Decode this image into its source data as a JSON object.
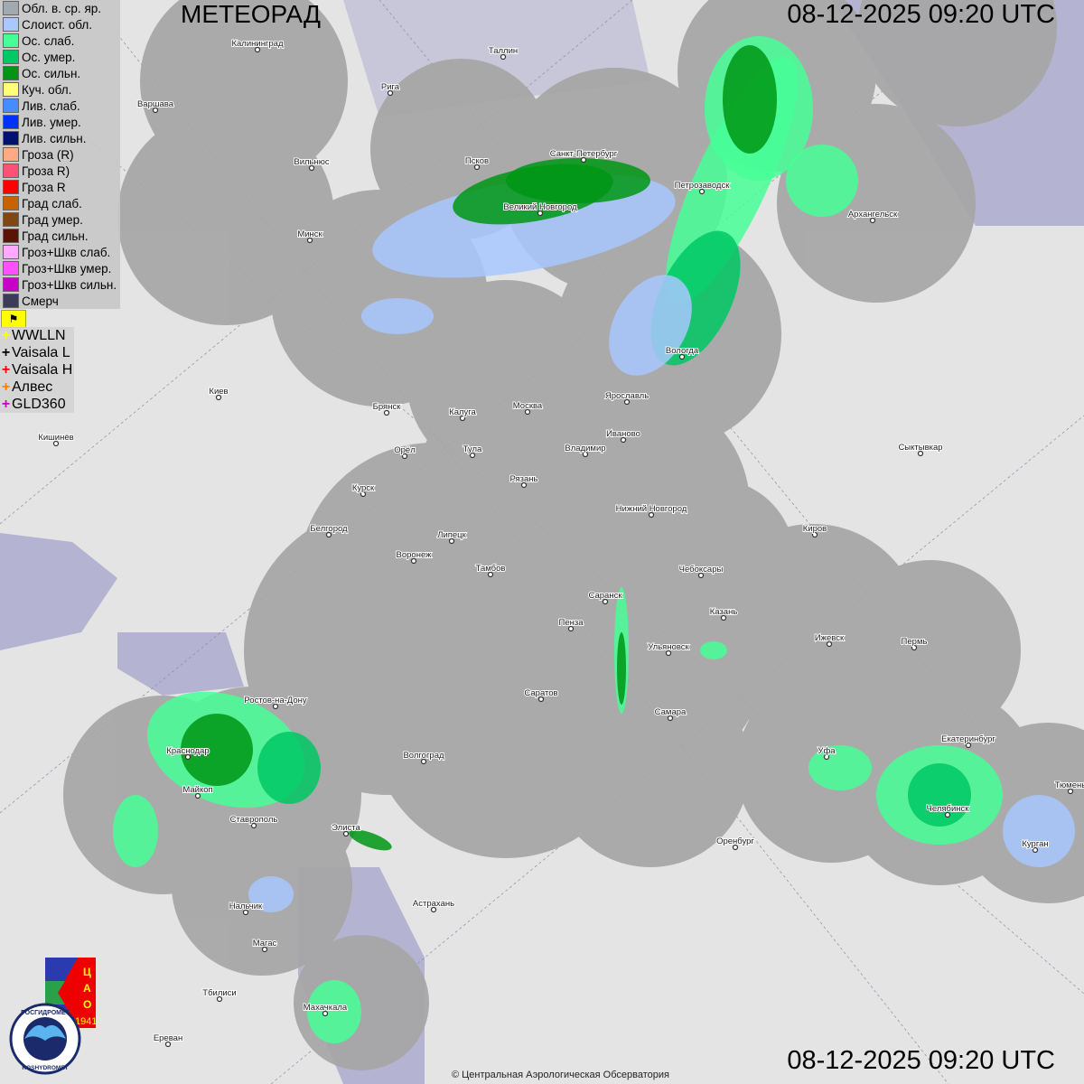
{
  "title": "МЕТЕОРАД",
  "timestamp_top": "08-12-2025  09:20 UTC",
  "timestamp_bottom": "08-12-2025  09:20 UTC",
  "copyright": "© Центральная Аэрологическая Обсерватория",
  "legend": [
    {
      "label": "Обл. в. ср. яр.",
      "color": "#a0aab0"
    },
    {
      "label": "Слоист. обл.",
      "color": "#a8c8ff"
    },
    {
      "label": "Ос. слаб.",
      "color": "#46ff96"
    },
    {
      "label": "Ос. умер.",
      "color": "#00c864"
    },
    {
      "label": "Ос. сильн.",
      "color": "#009614"
    },
    {
      "label": "Куч. обл.",
      "color": "#ffff78"
    },
    {
      "label": "Лив. слаб.",
      "color": "#468cff"
    },
    {
      "label": "Лив. умер.",
      "color": "#0032ff"
    },
    {
      "label": "Лив. сильн.",
      "color": "#00126e"
    },
    {
      "label": "Гроза (R)",
      "color": "#ffaa82"
    },
    {
      "label": "Гроза R)",
      "color": "#ff5078"
    },
    {
      "label": "Гроза R",
      "color": "#ff0000"
    },
    {
      "label": "Град слаб.",
      "color": "#c86400"
    },
    {
      "label": "Град умер.",
      "color": "#824614"
    },
    {
      "label": "Град сильн.",
      "color": "#5a1405"
    },
    {
      "label": "Гроз+Шкв слаб.",
      "color": "#ffaaff"
    },
    {
      "label": "Гроз+Шкв умер.",
      "color": "#ff50ff"
    },
    {
      "label": "Гроз+Шкв сильн.",
      "color": "#c800c8"
    },
    {
      "label": "Смерч",
      "color": "#3c3c5a"
    }
  ],
  "lightning": [
    {
      "label": "WWLLN",
      "color": "#ffff00"
    },
    {
      "label": "Vaisala L",
      "color": "#000000"
    },
    {
      "label": "Vaisala H",
      "color": "#ff0000"
    },
    {
      "label": "Алвес",
      "color": "#ff8000"
    },
    {
      "label": "GLD360",
      "color": "#c800c8"
    }
  ],
  "flag_icon": "flag-icon",
  "logos": {
    "cao": "ЦАО 1941",
    "roshydromet": "РОСГИДРОМЕТ ROSHYDROMET"
  },
  "cities": [
    "Калининград",
    "Таллин",
    "Рига",
    "Варшава",
    "Вильнюс",
    "Псков",
    "Санкт-Петербург",
    "Петрозаводск",
    "Архангельск",
    "Великий Новгород",
    "Минск",
    "Вологда",
    "Киев",
    "Ярославль",
    "Брянск",
    "Калуга",
    "Москва",
    "Иваново",
    "Кишинёв",
    "Орёл",
    "Тула",
    "Владимир",
    "Сыктывкар",
    "Рязань",
    "Курск",
    "Нижний Новгород",
    "Киров",
    "Белгород",
    "Липецк",
    "Воронеж",
    "Тамбов",
    "Чебоксары",
    "Саранск",
    "Казань",
    "Пенза",
    "Ижевск",
    "Пермь",
    "Ульяновск",
    "Ростов-на-Дону",
    "Саратов",
    "Самара",
    "Екатеринбург",
    "Уфа",
    "Краснодар",
    "Волгоград",
    "Тюмень",
    "Майкоп",
    "Челябинск",
    "Ставрополь",
    "Элиста",
    "Оренбург",
    "Курган",
    "Астрахань",
    "Нальчик",
    "Магас",
    "Тбилиси",
    "Махачкала",
    "Ереван"
  ]
}
